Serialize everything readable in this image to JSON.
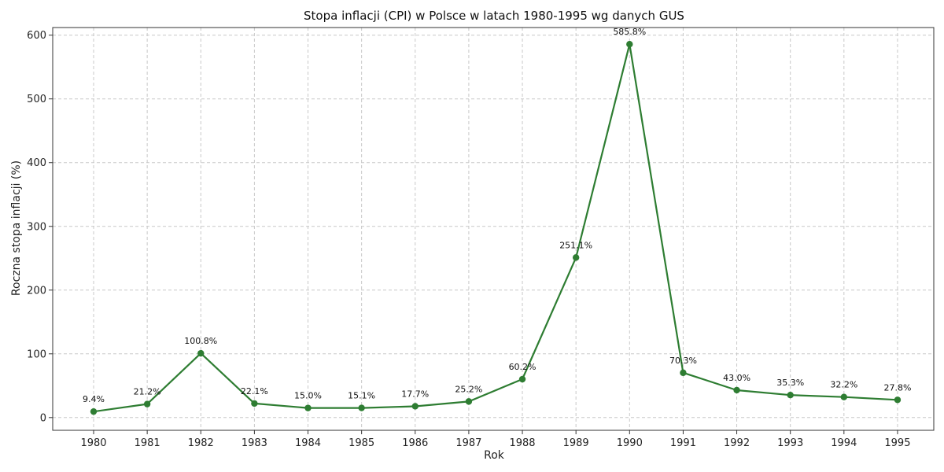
{
  "chart_data": {
    "type": "line",
    "title": "Stopa inflacji (CPI) w Polsce w latach 1980-1995 wg danych GUS",
    "xlabel": "Rok",
    "ylabel": "Roczna stopa inflacji (%)",
    "x": [
      "1980",
      "1981",
      "1982",
      "1983",
      "1984",
      "1985",
      "1986",
      "1987",
      "1988",
      "1989",
      "1990",
      "1991",
      "1992",
      "1993",
      "1994",
      "1995"
    ],
    "series": [
      {
        "values": [
          9.4,
          21.2,
          100.8,
          22.1,
          15.0,
          15.1,
          17.7,
          25.2,
          60.2,
          251.1,
          585.8,
          70.3,
          43.0,
          35.3,
          32.2,
          27.8
        ],
        "labels": [
          "9.4%",
          "21.2%",
          "100.8%",
          "22.1%",
          "15.0%",
          "15.1%",
          "17.7%",
          "25.2%",
          "60.2%",
          "251.1%",
          "585.8%",
          "70.3%",
          "43.0%",
          "35.3%",
          "32.2%",
          "27.8%"
        ],
        "color": "#2e7d32",
        "marker": "circle"
      }
    ],
    "ylim": [
      -20,
      615
    ],
    "yticks": [
      0,
      100,
      200,
      300,
      400,
      500,
      600
    ],
    "grid": true,
    "legend": "none"
  }
}
